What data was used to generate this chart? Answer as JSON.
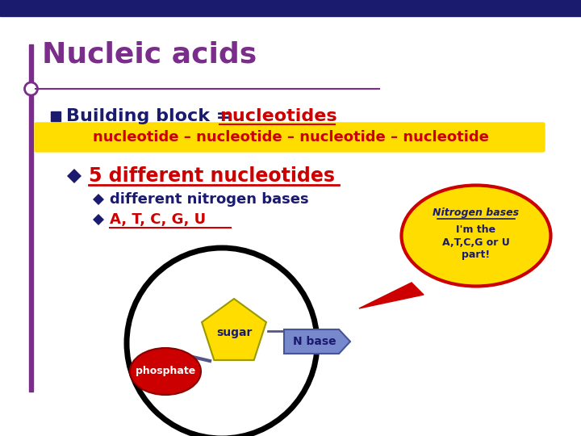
{
  "bg_color": "#ffffff",
  "top_bar_color": "#1a1a6e",
  "title_text": "Nucleic acids",
  "title_color": "#7b2d8b",
  "bullet1_text": "Building block = ",
  "bullet1_highlight": "nucleotides",
  "bullet1_color": "#1a1a6e",
  "highlight_color": "#cc0000",
  "yellow_banner_text": "nucleotide – nucleotide – nucleotide – nucleotide",
  "yellow_banner_bg": "#ffdd00",
  "yellow_banner_text_color": "#cc0000",
  "diamond_bullet_color": "#1a1a6e",
  "bullet2_text": "5 different nucleotides",
  "bullet2_color": "#cc0000",
  "sub_bullet1_text": "different nitrogen bases",
  "sub_bullet1_color": "#1a1a6e",
  "sub_bullet2_text": "A, T, C, G, U",
  "sub_bullet2_color": "#cc0000",
  "circle_color": "#000000",
  "sugar_color": "#ffdd00",
  "sugar_text": "sugar",
  "sugar_text_color": "#1a1a6e",
  "phosphate_color": "#cc0000",
  "phosphate_text": "phosphate",
  "phosphate_text_color": "#ffffff",
  "nbase_color": "#7788cc",
  "nbase_text": "N base",
  "nbase_text_color": "#1a1a6e",
  "callout_bg": "#ffdd00",
  "callout_border": "#cc0000",
  "callout_title": "Nitrogen bases",
  "callout_line1": "I'm the",
  "callout_line2": "A,T,C,G or U",
  "callout_line3": "part!",
  "callout_text_color": "#1a1a6e",
  "left_bar_color": "#7b2d8b",
  "connector_color": "#555588"
}
